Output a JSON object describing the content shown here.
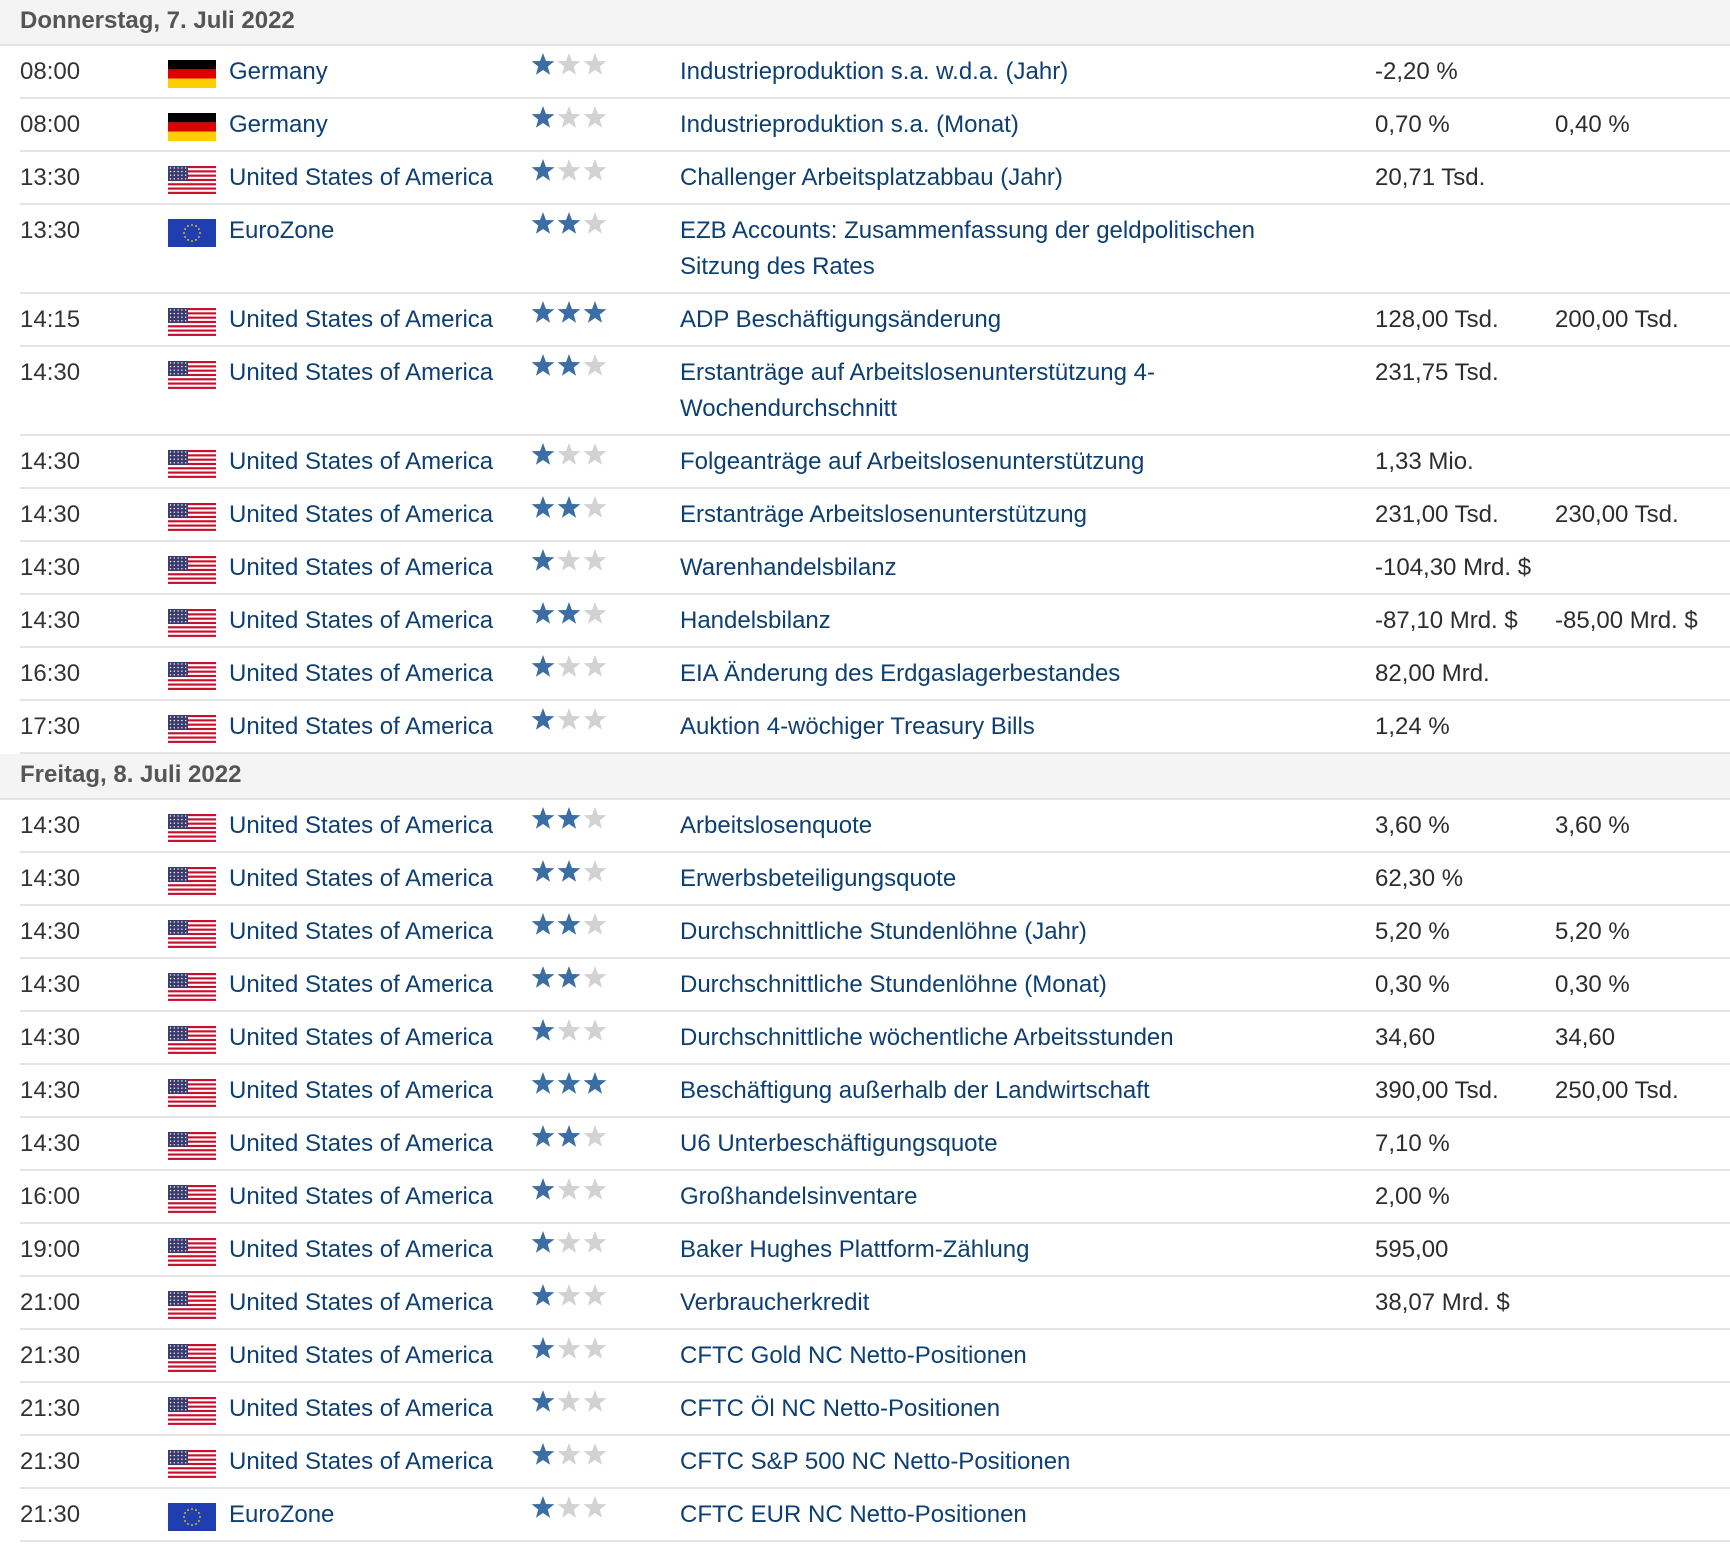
{
  "colors": {
    "link": "#0d3f73",
    "star_on": "#3a6ea5",
    "star_off": "#d2d2d2",
    "row_border": "#e4e4e4"
  },
  "days": [
    {
      "title": "Donnerstag, 7. Juli 2022",
      "rows": [
        {
          "time": "08:00",
          "flag": "de",
          "country": "Germany",
          "stars": 1,
          "event": "Industrieproduktion s.a. w.d.a. (Jahr)",
          "actual": "-2,20 %",
          "forecast": ""
        },
        {
          "time": "08:00",
          "flag": "de",
          "country": "Germany",
          "stars": 1,
          "event": "Industrieproduktion s.a. (Monat)",
          "actual": "0,70 %",
          "forecast": "0,40 %"
        },
        {
          "time": "13:30",
          "flag": "us",
          "country": "United States of America",
          "stars": 1,
          "event": "Challenger Arbeitsplatzabbau (Jahr)",
          "actual": "20,71 Tsd.",
          "forecast": ""
        },
        {
          "time": "13:30",
          "flag": "eu",
          "country": "EuroZone",
          "stars": 2,
          "event": "EZB Accounts: Zusammenfassung der geldpolitischen Sitzung des Rates",
          "actual": "",
          "forecast": "",
          "tall": true
        },
        {
          "time": "14:15",
          "flag": "us",
          "country": "United States of America",
          "stars": 3,
          "event": "ADP Beschäftigungsänderung",
          "actual": "128,00 Tsd.",
          "forecast": "200,00 Tsd."
        },
        {
          "time": "14:30",
          "flag": "us",
          "country": "United States of America",
          "stars": 2,
          "event": "Erstanträge auf Arbeitslosenunterstützung 4-Wochendurchschnitt",
          "actual": "231,75 Tsd.",
          "forecast": "",
          "tall": true
        },
        {
          "time": "14:30",
          "flag": "us",
          "country": "United States of America",
          "stars": 1,
          "event": "Folgeanträge auf Arbeitslosenunterstützung",
          "actual": "1,33 Mio.",
          "forecast": ""
        },
        {
          "time": "14:30",
          "flag": "us",
          "country": "United States of America",
          "stars": 2,
          "event": "Erstanträge Arbeitslosenunterstützung",
          "actual": "231,00 Tsd.",
          "forecast": "230,00 Tsd."
        },
        {
          "time": "14:30",
          "flag": "us",
          "country": "United States of America",
          "stars": 1,
          "event": "Warenhandelsbilanz",
          "actual": "-104,30 Mrd. $",
          "forecast": ""
        },
        {
          "time": "14:30",
          "flag": "us",
          "country": "United States of America",
          "stars": 2,
          "event": "Handelsbilanz",
          "actual": "-87,10 Mrd. $",
          "forecast": "-85,00 Mrd. $"
        },
        {
          "time": "16:30",
          "flag": "us",
          "country": "United States of America",
          "stars": 1,
          "event": "EIA Änderung des Erdgaslagerbestandes",
          "actual": "82,00 Mrd.",
          "forecast": ""
        },
        {
          "time": "17:30",
          "flag": "us",
          "country": "United States of America",
          "stars": 1,
          "event": "Auktion 4-wöchiger Treasury Bills",
          "actual": "1,24 %",
          "forecast": ""
        }
      ]
    },
    {
      "title": "Freitag, 8. Juli 2022",
      "rows": [
        {
          "time": "14:30",
          "flag": "us",
          "country": "United States of America",
          "stars": 2,
          "event": "Arbeitslosenquote",
          "actual": "3,60 %",
          "forecast": "3,60 %"
        },
        {
          "time": "14:30",
          "flag": "us",
          "country": "United States of America",
          "stars": 2,
          "event": "Erwerbsbeteiligungsquote",
          "actual": "62,30 %",
          "forecast": ""
        },
        {
          "time": "14:30",
          "flag": "us",
          "country": "United States of America",
          "stars": 2,
          "event": "Durchschnittliche Stundenlöhne (Jahr)",
          "actual": "5,20 %",
          "forecast": "5,20 %"
        },
        {
          "time": "14:30",
          "flag": "us",
          "country": "United States of America",
          "stars": 2,
          "event": "Durchschnittliche Stundenlöhne (Monat)",
          "actual": "0,30 %",
          "forecast": "0,30 %"
        },
        {
          "time": "14:30",
          "flag": "us",
          "country": "United States of America",
          "stars": 1,
          "event": "Durchschnittliche wöchentliche Arbeitsstunden",
          "actual": "34,60",
          "forecast": "34,60"
        },
        {
          "time": "14:30",
          "flag": "us",
          "country": "United States of America",
          "stars": 3,
          "event": "Beschäftigung außerhalb der Landwirtschaft",
          "actual": "390,00 Tsd.",
          "forecast": "250,00 Tsd."
        },
        {
          "time": "14:30",
          "flag": "us",
          "country": "United States of America",
          "stars": 2,
          "event": "U6 Unterbeschäftigungsquote",
          "actual": "7,10 %",
          "forecast": ""
        },
        {
          "time": "16:00",
          "flag": "us",
          "country": "United States of America",
          "stars": 1,
          "event": "Großhandelsinventare",
          "actual": "2,00 %",
          "forecast": ""
        },
        {
          "time": "19:00",
          "flag": "us",
          "country": "United States of America",
          "stars": 1,
          "event": "Baker Hughes Plattform-Zählung",
          "actual": "595,00",
          "forecast": ""
        },
        {
          "time": "21:00",
          "flag": "us",
          "country": "United States of America",
          "stars": 1,
          "event": "Verbraucherkredit",
          "actual": "38,07 Mrd. $",
          "forecast": ""
        },
        {
          "time": "21:30",
          "flag": "us",
          "country": "United States of America",
          "stars": 1,
          "event": "CFTC Gold NC Netto-Positionen",
          "actual": "",
          "forecast": ""
        },
        {
          "time": "21:30",
          "flag": "us",
          "country": "United States of America",
          "stars": 1,
          "event": "CFTC Öl NC Netto-Positionen",
          "actual": "",
          "forecast": ""
        },
        {
          "time": "21:30",
          "flag": "us",
          "country": "United States of America",
          "stars": 1,
          "event": "CFTC S&P 500 NC Netto-Positionen",
          "actual": "",
          "forecast": ""
        },
        {
          "time": "21:30",
          "flag": "eu",
          "country": "EuroZone",
          "stars": 1,
          "event": "CFTC EUR NC Netto-Positionen",
          "actual": "",
          "forecast": ""
        }
      ]
    }
  ]
}
